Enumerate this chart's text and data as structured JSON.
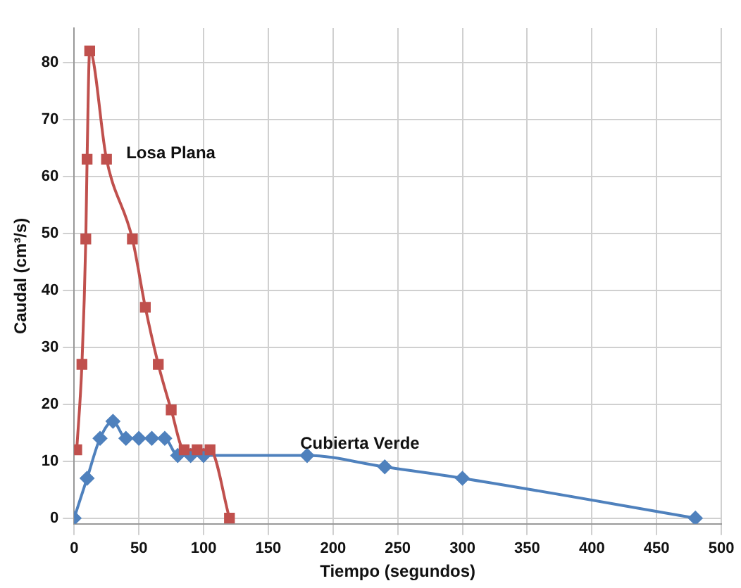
{
  "chart_data": {
    "type": "line",
    "xlabel": "Tiempo (segundos)",
    "ylabel": "Caudal (cm³/s)",
    "xlim": [
      0,
      500
    ],
    "xticks": [
      0,
      50,
      100,
      150,
      200,
      250,
      300,
      350,
      400,
      450,
      500
    ],
    "ylim": [
      -1,
      86
    ],
    "yticks": [
      0,
      10,
      20,
      30,
      40,
      50,
      60,
      70,
      80
    ],
    "grid": true,
    "legend": false,
    "series": [
      {
        "name": "Losa Plana",
        "color": "#c0504d",
        "marker": "square",
        "x": [
          2,
          6,
          9,
          10,
          12,
          25,
          45,
          55,
          65,
          75,
          85,
          95,
          105,
          120
        ],
        "values": [
          12,
          27,
          49,
          63,
          82,
          63,
          49,
          37,
          27,
          19,
          12,
          12,
          12,
          0
        ]
      },
      {
        "name": "Cubierta Verde",
        "color": "#4f81bd",
        "marker": "diamond",
        "x": [
          0,
          10,
          20,
          30,
          40,
          50,
          60,
          70,
          80,
          90,
          100,
          180,
          240,
          300,
          480
        ],
        "values": [
          0,
          7,
          14,
          17,
          14,
          14,
          14,
          14,
          11,
          11,
          11,
          11,
          9,
          7,
          0
        ]
      }
    ]
  }
}
